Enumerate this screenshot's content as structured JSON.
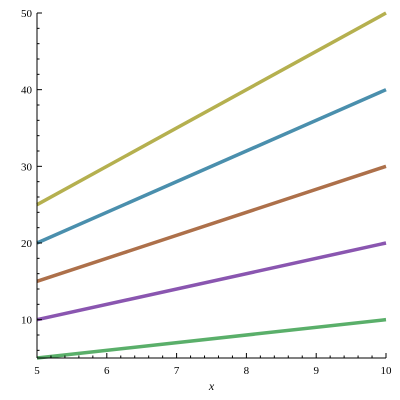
{
  "chart_data": {
    "type": "line",
    "title": "",
    "xlabel": "x",
    "ylabel": "",
    "xlim": [
      5,
      10
    ],
    "ylim": [
      5,
      50
    ],
    "x_ticks": [
      5,
      6,
      7,
      8,
      9,
      10
    ],
    "y_ticks": [
      10,
      20,
      30,
      40,
      50
    ],
    "grid": false,
    "legend": "none",
    "series": [
      {
        "color": "#b5b04f",
        "x": [
          5,
          10
        ],
        "y": [
          25,
          50
        ]
      },
      {
        "color": "#4a8fad",
        "x": [
          5,
          10
        ],
        "y": [
          20,
          40
        ]
      },
      {
        "color": "#ad704a",
        "x": [
          5,
          10
        ],
        "y": [
          15,
          30
        ]
      },
      {
        "color": "#8a56b0",
        "x": [
          5,
          10
        ],
        "y": [
          10,
          20
        ]
      },
      {
        "color": "#5aaf6a",
        "x": [
          5,
          10
        ],
        "y": [
          5,
          10
        ]
      }
    ]
  }
}
